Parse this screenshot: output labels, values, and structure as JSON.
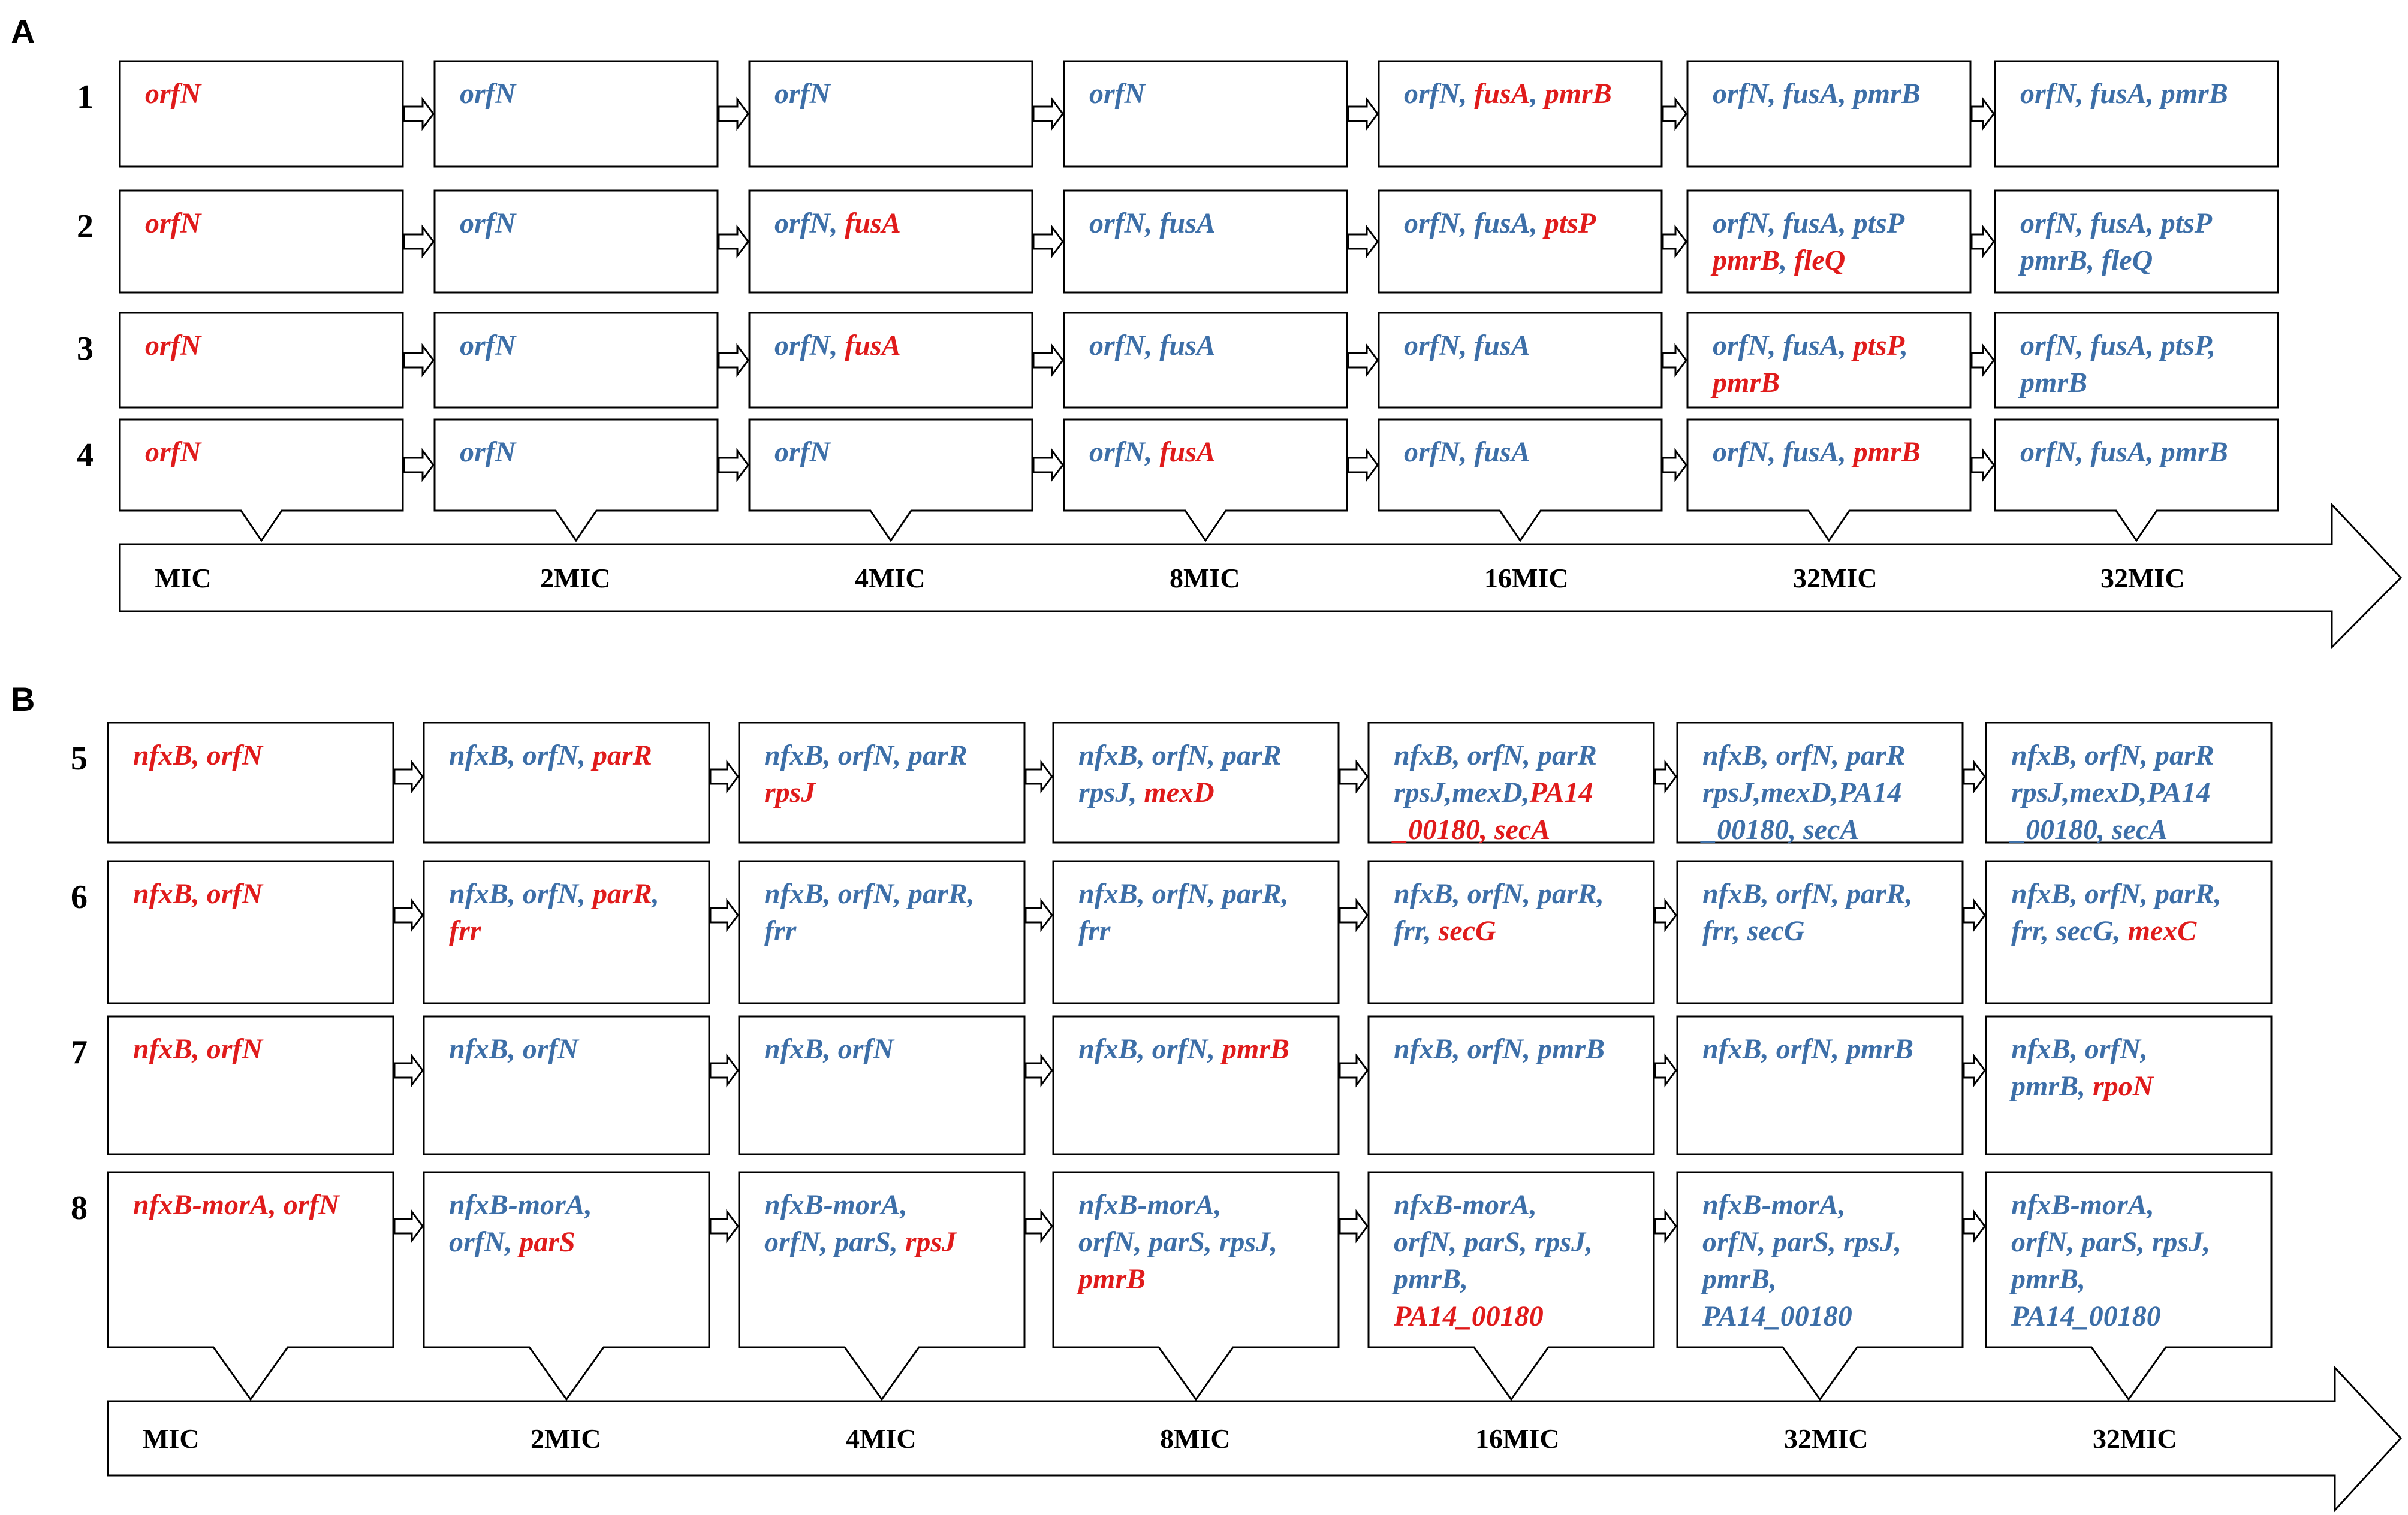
{
  "colors": {
    "new_mutation": "#e01b1b",
    "inherited": "#3d6fa8"
  },
  "panels": [
    {
      "label": "A",
      "stages": [
        "MIC",
        "2MIC",
        "4MIC",
        "8MIC",
        "16MIC",
        "32MIC",
        "32MIC"
      ],
      "rows": [
        {
          "label": "1",
          "cells": [
            [
              [
                [
                  "orfN",
                  "r"
                ]
              ]
            ],
            [
              [
                [
                  "orfN",
                  "b"
                ]
              ]
            ],
            [
              [
                [
                  "orfN",
                  "b"
                ]
              ]
            ],
            [
              [
                [
                  "orfN",
                  "b"
                ]
              ]
            ],
            [
              [
                [
                  "orfN",
                  "b"
                ],
                [
                  ", ",
                  "b"
                ],
                [
                  "fusA",
                  "r"
                ],
                [
                  ", ",
                  "b"
                ],
                [
                  "pmrB",
                  "r"
                ]
              ]
            ],
            [
              [
                [
                  "orfN",
                  "b"
                ],
                [
                  ", ",
                  "b"
                ],
                [
                  "fusA",
                  "b"
                ],
                [
                  ", ",
                  "b"
                ],
                [
                  "pmrB",
                  "b"
                ]
              ]
            ],
            [
              [
                [
                  "orfN",
                  "b"
                ],
                [
                  ", ",
                  "b"
                ],
                [
                  "fusA",
                  "b"
                ],
                [
                  ", ",
                  "b"
                ],
                [
                  "pmrB",
                  "b"
                ]
              ]
            ]
          ]
        },
        {
          "label": "2",
          "cells": [
            [
              [
                [
                  "orfN",
                  "r"
                ]
              ]
            ],
            [
              [
                [
                  "orfN",
                  "b"
                ]
              ]
            ],
            [
              [
                [
                  "orfN",
                  "b"
                ],
                [
                  ", ",
                  "b"
                ],
                [
                  "fusA",
                  "r"
                ]
              ]
            ],
            [
              [
                [
                  "orfN",
                  "b"
                ],
                [
                  ", ",
                  "b"
                ],
                [
                  "fusA",
                  "b"
                ]
              ]
            ],
            [
              [
                [
                  "orfN",
                  "b"
                ],
                [
                  ", ",
                  "b"
                ],
                [
                  "fusA",
                  "b"
                ],
                [
                  ", ",
                  "b"
                ],
                [
                  "ptsP",
                  "r"
                ]
              ]
            ],
            [
              [
                [
                  "orfN",
                  "b"
                ],
                [
                  ", ",
                  "b"
                ],
                [
                  "fusA",
                  "b"
                ],
                [
                  ", ",
                  "b"
                ],
                [
                  "ptsP",
                  "b"
                ]
              ],
              [
                [
                  "pmrB",
                  "r"
                ],
                [
                  ", ",
                  "b"
                ],
                [
                  "fleQ",
                  "r"
                ]
              ]
            ],
            [
              [
                [
                  "orfN",
                  "b"
                ],
                [
                  ", ",
                  "b"
                ],
                [
                  "fusA",
                  "b"
                ],
                [
                  ", ",
                  "b"
                ],
                [
                  "ptsP",
                  "b"
                ]
              ],
              [
                [
                  "pmrB",
                  "b"
                ],
                [
                  ", ",
                  "b"
                ],
                [
                  "fleQ",
                  "b"
                ]
              ]
            ]
          ]
        },
        {
          "label": "3",
          "cells": [
            [
              [
                [
                  "orfN",
                  "r"
                ]
              ]
            ],
            [
              [
                [
                  "orfN",
                  "b"
                ]
              ]
            ],
            [
              [
                [
                  "orfN",
                  "b"
                ],
                [
                  ", ",
                  "b"
                ],
                [
                  "fusA",
                  "r"
                ]
              ]
            ],
            [
              [
                [
                  "orfN",
                  "b"
                ],
                [
                  ", ",
                  "b"
                ],
                [
                  "fusA",
                  "b"
                ]
              ]
            ],
            [
              [
                [
                  "orfN",
                  "b"
                ],
                [
                  ", ",
                  "b"
                ],
                [
                  "fusA",
                  "b"
                ]
              ]
            ],
            [
              [
                [
                  "orfN",
                  "b"
                ],
                [
                  ", ",
                  "b"
                ],
                [
                  "fusA",
                  "b"
                ],
                [
                  ", ",
                  "b"
                ],
                [
                  "ptsP",
                  "r"
                ],
                [
                  ",",
                  "b"
                ]
              ],
              [
                [
                  "pmrB",
                  "r"
                ]
              ]
            ],
            [
              [
                [
                  "orfN",
                  "b"
                ],
                [
                  ", ",
                  "b"
                ],
                [
                  "fusA",
                  "b"
                ],
                [
                  ", ",
                  "b"
                ],
                [
                  "ptsP",
                  "b"
                ],
                [
                  ",",
                  "b"
                ]
              ],
              [
                [
                  "pmrB",
                  "b"
                ]
              ]
            ]
          ]
        },
        {
          "label": "4",
          "cells": [
            [
              [
                [
                  "orfN",
                  "r"
                ]
              ]
            ],
            [
              [
                [
                  "orfN",
                  "b"
                ]
              ]
            ],
            [
              [
                [
                  "orfN",
                  "b"
                ]
              ]
            ],
            [
              [
                [
                  "orfN",
                  "b"
                ],
                [
                  ", ",
                  "b"
                ],
                [
                  "fusA",
                  "r"
                ]
              ]
            ],
            [
              [
                [
                  "orfN",
                  "b"
                ],
                [
                  ", ",
                  "b"
                ],
                [
                  "fusA",
                  "b"
                ]
              ]
            ],
            [
              [
                [
                  "orfN",
                  "b"
                ],
                [
                  ", ",
                  "b"
                ],
                [
                  "fusA",
                  "b"
                ],
                [
                  ", ",
                  "b"
                ],
                [
                  "pmrB",
                  "r"
                ]
              ]
            ],
            [
              [
                [
                  "orfN",
                  "b"
                ],
                [
                  ", ",
                  "b"
                ],
                [
                  "fusA",
                  "b"
                ],
                [
                  ", ",
                  "b"
                ],
                [
                  "pmrB",
                  "b"
                ]
              ]
            ]
          ]
        }
      ]
    },
    {
      "label": "B",
      "stages": [
        "MIC",
        "2MIC",
        "4MIC",
        "8MIC",
        "16MIC",
        "32MIC",
        "32MIC"
      ],
      "rows": [
        {
          "label": "5",
          "cells": [
            [
              [
                [
                  "nfxB, orfN",
                  "r"
                ]
              ]
            ],
            [
              [
                [
                  "nfxB",
                  "b"
                ],
                [
                  ", orfN, ",
                  "b"
                ],
                [
                  "parR",
                  "r"
                ]
              ]
            ],
            [
              [
                [
                  "nfxB, orfN, parR",
                  "b"
                ]
              ],
              [
                [
                  "rpsJ",
                  "r"
                ]
              ]
            ],
            [
              [
                [
                  "nfxB, orfN, parR",
                  "b"
                ]
              ],
              [
                [
                  "rpsJ, ",
                  "b"
                ],
                [
                  "mexD",
                  "r"
                ]
              ]
            ],
            [
              [
                [
                  "nfxB, orfN, parR",
                  "b"
                ]
              ],
              [
                [
                  "rpsJ,mexD,",
                  "b"
                ],
                [
                  "PA14",
                  "r"
                ]
              ],
              [
                [
                  "_00180, secA",
                  "r"
                ]
              ]
            ],
            [
              [
                [
                  "nfxB, orfN, parR",
                  "b"
                ]
              ],
              [
                [
                  "rpsJ,mexD,PA14",
                  "b"
                ]
              ],
              [
                [
                  "_00180, secA",
                  "b"
                ]
              ]
            ],
            [
              [
                [
                  "nfxB, orfN, parR",
                  "b"
                ]
              ],
              [
                [
                  "rpsJ,mexD,PA14",
                  "b"
                ]
              ],
              [
                [
                  "_00180, secA",
                  "b"
                ]
              ]
            ]
          ]
        },
        {
          "label": "6",
          "cells": [
            [
              [
                [
                  "nfxB, orfN",
                  "r"
                ]
              ]
            ],
            [
              [
                [
                  "nfxB, orfN, ",
                  "b"
                ],
                [
                  "parR",
                  "r"
                ],
                [
                  ",",
                  "b"
                ]
              ],
              [
                [
                  "frr",
                  "r"
                ]
              ]
            ],
            [
              [
                [
                  "nfxB, orfN, parR,",
                  "b"
                ]
              ],
              [
                [
                  "frr",
                  "b"
                ]
              ]
            ],
            [
              [
                [
                  "nfxB, orfN, parR,",
                  "b"
                ]
              ],
              [
                [
                  "frr",
                  "b"
                ]
              ]
            ],
            [
              [
                [
                  "nfxB, orfN, parR,",
                  "b"
                ]
              ],
              [
                [
                  "frr, ",
                  "b"
                ],
                [
                  "secG",
                  "r"
                ]
              ]
            ],
            [
              [
                [
                  "nfxB, orfN, parR,",
                  "b"
                ]
              ],
              [
                [
                  "frr, secG",
                  "b"
                ]
              ]
            ],
            [
              [
                [
                  "nfxB, orfN, parR,",
                  "b"
                ]
              ],
              [
                [
                  "frr, secG, ",
                  "b"
                ],
                [
                  "mexC",
                  "r"
                ]
              ]
            ]
          ]
        },
        {
          "label": "7",
          "cells": [
            [
              [
                [
                  "nfxB, orfN",
                  "r"
                ]
              ]
            ],
            [
              [
                [
                  "nfxB, orfN",
                  "b"
                ]
              ]
            ],
            [
              [
                [
                  "nfxB, orfN",
                  "b"
                ]
              ]
            ],
            [
              [
                [
                  "nfxB, orfN, ",
                  "b"
                ],
                [
                  "pmrB",
                  "r"
                ]
              ]
            ],
            [
              [
                [
                  "nfxB, orfN, pmrB",
                  "b"
                ]
              ]
            ],
            [
              [
                [
                  "nfxB, orfN, pmrB",
                  "b"
                ]
              ]
            ],
            [
              [
                [
                  "nfxB, orfN,",
                  "b"
                ]
              ],
              [
                [
                  "pmrB, ",
                  "b"
                ],
                [
                  "rpoN",
                  "r"
                ]
              ]
            ]
          ]
        },
        {
          "label": "8",
          "cells": [
            [
              [
                [
                  "nfxB-morA, orfN",
                  "r"
                ]
              ]
            ],
            [
              [
                [
                  "nfxB-morA,",
                  "b"
                ]
              ],
              [
                [
                  "orfN, ",
                  "b"
                ],
                [
                  "parS",
                  "r"
                ]
              ]
            ],
            [
              [
                [
                  "nfxB-morA,",
                  "b"
                ]
              ],
              [
                [
                  "orfN, parS, ",
                  "b"
                ],
                [
                  "rpsJ",
                  "r"
                ]
              ]
            ],
            [
              [
                [
                  "nfxB-morA,",
                  "b"
                ]
              ],
              [
                [
                  "orfN, parS, rpsJ,",
                  "b"
                ]
              ],
              [
                [
                  "pmrB",
                  "r"
                ]
              ]
            ],
            [
              [
                [
                  "nfxB-morA,",
                  "b"
                ]
              ],
              [
                [
                  "orfN, parS, rpsJ,",
                  "b"
                ]
              ],
              [
                [
                  "pmrB,",
                  "b"
                ]
              ],
              [
                [
                  "PA14_00180",
                  "r"
                ]
              ]
            ],
            [
              [
                [
                  "nfxB-morA,",
                  "b"
                ]
              ],
              [
                [
                  "orfN, parS, rpsJ,",
                  "b"
                ]
              ],
              [
                [
                  "pmrB,",
                  "b"
                ]
              ],
              [
                [
                  "PA14_00180",
                  "b"
                ]
              ]
            ],
            [
              [
                [
                  "nfxB-morA,",
                  "b"
                ]
              ],
              [
                [
                  "orfN, parS, rpsJ,",
                  "b"
                ]
              ],
              [
                [
                  "pmrB,",
                  "b"
                ]
              ],
              [
                [
                  "PA14_00180",
                  "b"
                ]
              ]
            ]
          ]
        }
      ]
    }
  ]
}
